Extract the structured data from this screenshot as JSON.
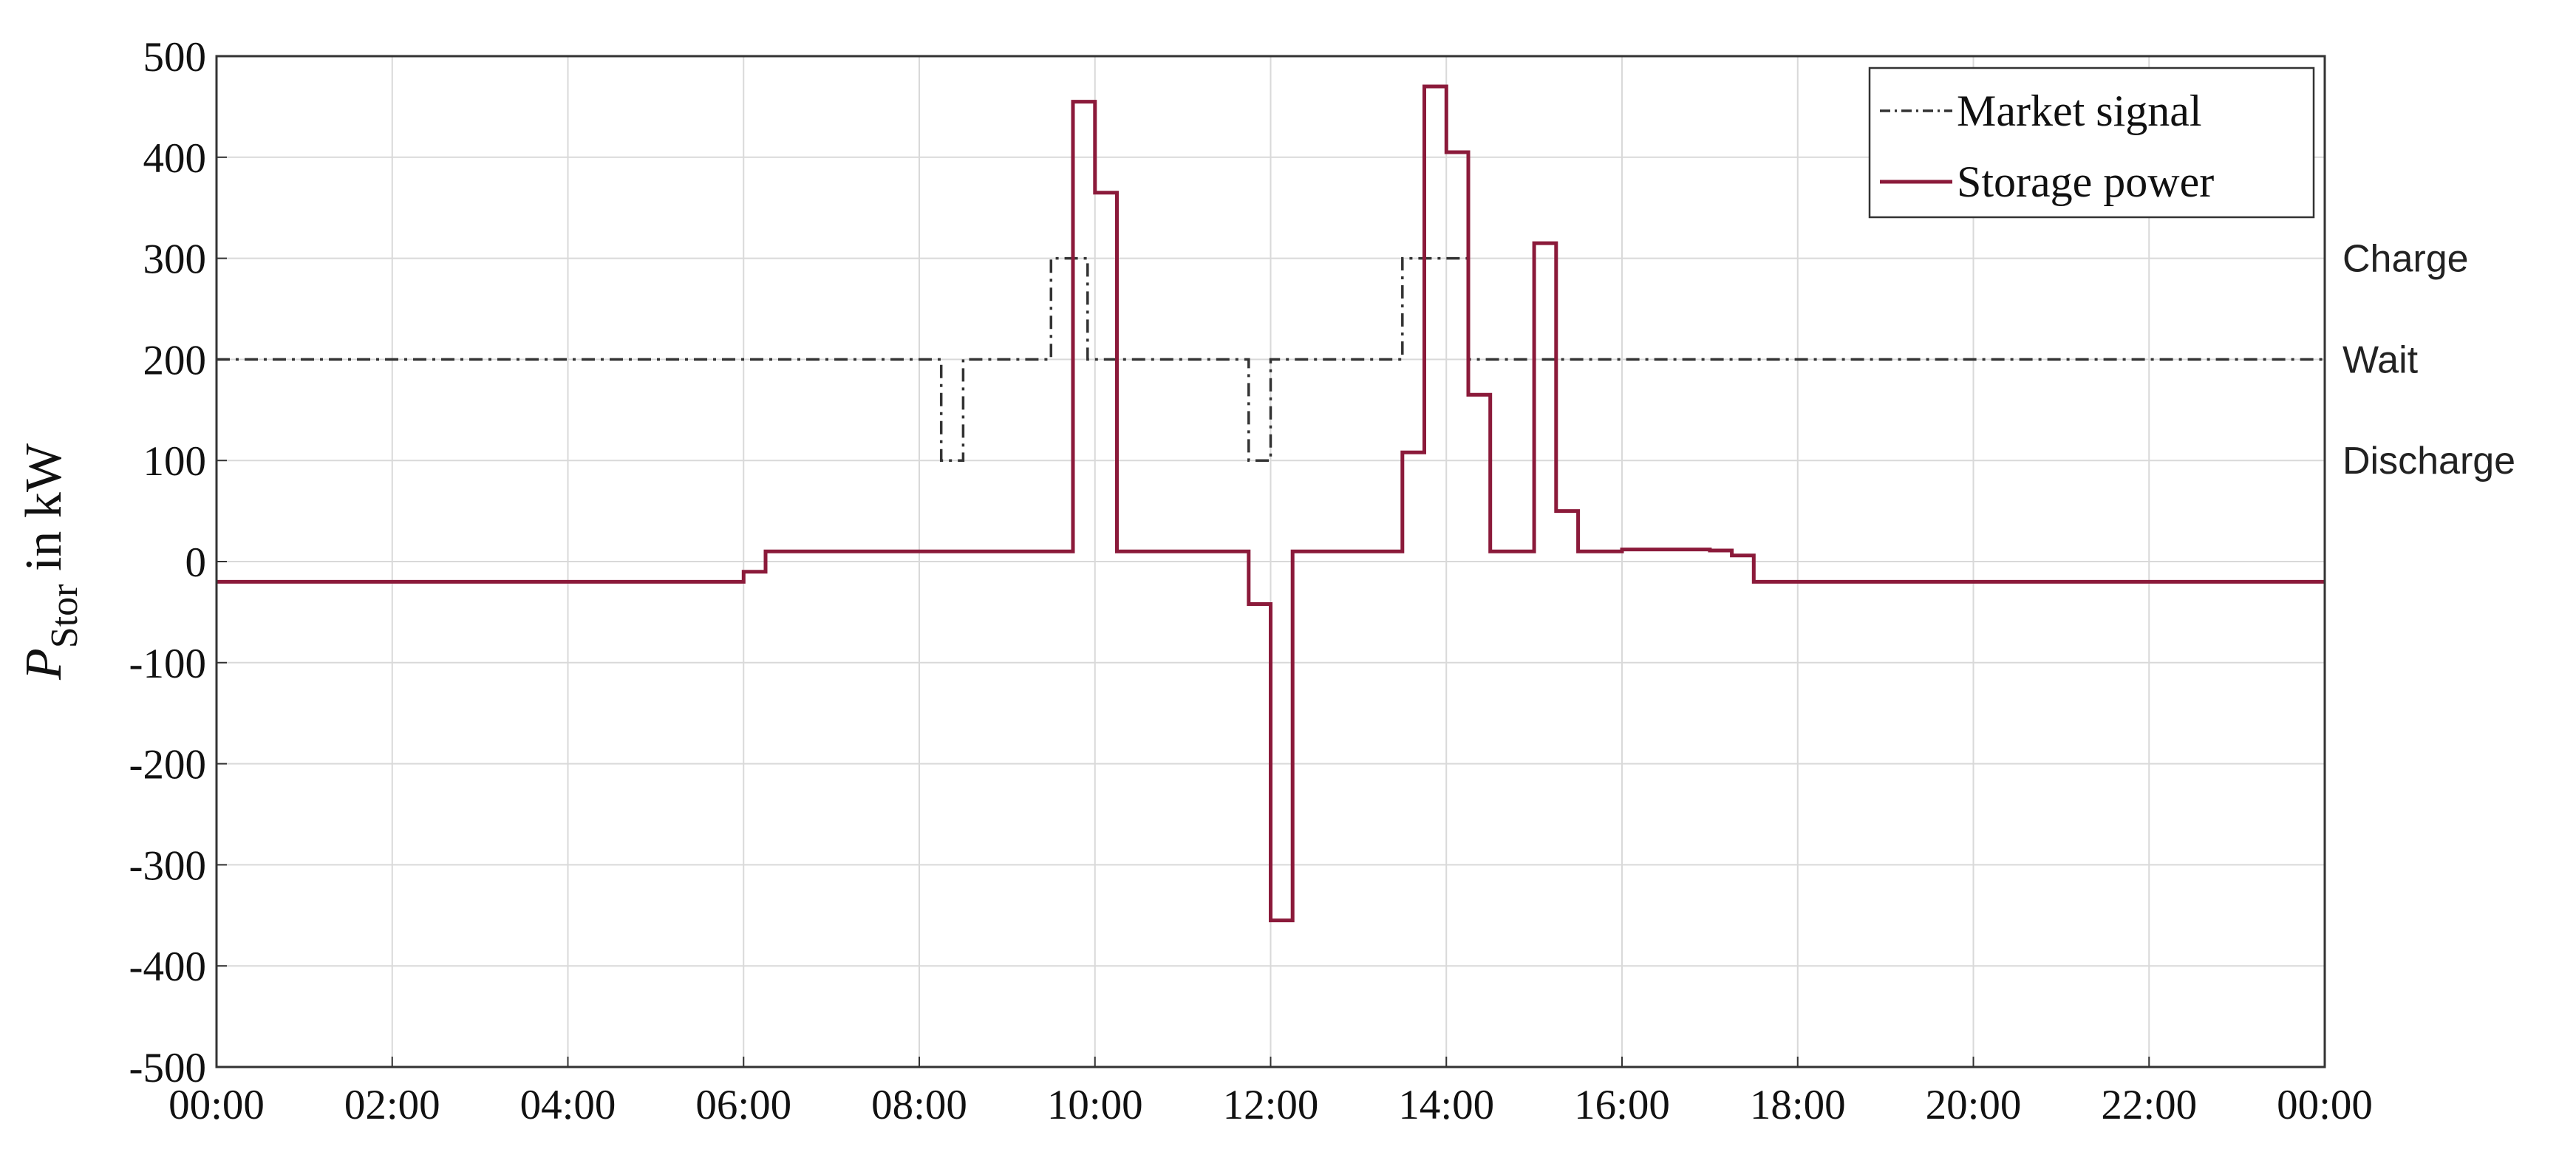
{
  "chart_data": {
    "type": "line",
    "title": "",
    "xlabel": "",
    "ylabel": {
      "symbol": "P",
      "subscript": "Stor",
      "rest": " in kW"
    },
    "xlim": [
      0,
      24
    ],
    "ylim": [
      -500,
      500
    ],
    "x_ticks": [
      {
        "h": 0,
        "label": "00:00"
      },
      {
        "h": 2,
        "label": "02:00"
      },
      {
        "h": 4,
        "label": "04:00"
      },
      {
        "h": 6,
        "label": "06:00"
      },
      {
        "h": 8,
        "label": "08:00"
      },
      {
        "h": 10,
        "label": "10:00"
      },
      {
        "h": 12,
        "label": "12:00"
      },
      {
        "h": 14,
        "label": "14:00"
      },
      {
        "h": 16,
        "label": "16:00"
      },
      {
        "h": 18,
        "label": "18:00"
      },
      {
        "h": 20,
        "label": "20:00"
      },
      {
        "h": 22,
        "label": "22:00"
      },
      {
        "h": 24,
        "label": "00:00"
      }
    ],
    "y_ticks": [
      500,
      400,
      300,
      200,
      100,
      0,
      -100,
      -200,
      -300,
      -400,
      -500
    ],
    "grid": true,
    "legend_position": "top-right",
    "right_labels": [
      {
        "y": 300,
        "text": "Charge"
      },
      {
        "y": 200,
        "text": "Wait"
      },
      {
        "y": 100,
        "text": "Discharge"
      }
    ],
    "series": [
      {
        "name": "Market signal",
        "style": "dash-dot",
        "color": "#333333",
        "x": [
          "00:00",
          "08:15",
          "08:15",
          "08:30",
          "08:30",
          "09:30",
          "09:30",
          "09:55",
          "09:55",
          "11:45",
          "11:45",
          "12:00",
          "12:00",
          "13:30",
          "13:30",
          "14:15",
          "14:15",
          "24:00"
        ],
        "y": [
          200,
          200,
          100,
          100,
          200,
          200,
          300,
          300,
          200,
          200,
          100,
          100,
          200,
          200,
          300,
          300,
          200,
          200
        ]
      },
      {
        "name": "Storage power",
        "style": "solid",
        "color": "#8b1a3a",
        "x": [
          "00:00",
          "06:00",
          "06:00",
          "06:15",
          "06:15",
          "09:45",
          "09:45",
          "10:00",
          "10:00",
          "10:15",
          "10:15",
          "11:45",
          "11:45",
          "12:00",
          "12:00",
          "12:15",
          "12:15",
          "13:30",
          "13:30",
          "13:45",
          "13:45",
          "14:00",
          "14:00",
          "14:15",
          "14:15",
          "14:30",
          "14:30",
          "15:00",
          "15:00",
          "15:15",
          "15:15",
          "15:30",
          "15:30",
          "16:00",
          "16:00",
          "17:00",
          "17:00",
          "17:15",
          "17:15",
          "17:30",
          "17:30",
          "24:00"
        ],
        "y": [
          -20,
          -20,
          -10,
          -10,
          10,
          10,
          455,
          455,
          365,
          365,
          10,
          10,
          -42,
          -42,
          -355,
          -355,
          10,
          10,
          108,
          108,
          470,
          470,
          405,
          405,
          165,
          165,
          10,
          10,
          315,
          315,
          50,
          50,
          10,
          10,
          12,
          12,
          11,
          11,
          6,
          6,
          -20,
          -20
        ]
      }
    ]
  },
  "colors": {
    "market": "#333333",
    "storage": "#8b1a3a",
    "grid": "#d9d9d9",
    "axis": "#333333"
  }
}
